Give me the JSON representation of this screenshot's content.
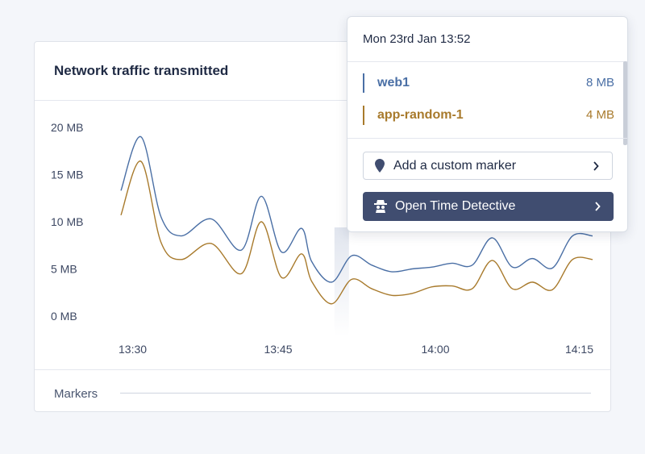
{
  "card": {
    "title": "Network traffic transmitted",
    "markers_label": "Markers"
  },
  "chart_data": {
    "type": "line",
    "title": "Network traffic transmitted",
    "x_ticks": [
      "13:30",
      "13:45",
      "14:00",
      "14:15"
    ],
    "y_ticks": [
      "20 MB",
      "15 MB",
      "10 MB",
      "5 MB",
      "0 MB"
    ],
    "ylim": [
      0,
      20
    ],
    "xlim": [
      0,
      47
    ],
    "x_unit": "minutes after 13:30",
    "hover_x": 22,
    "series": [
      {
        "name": "web1",
        "color": "#4a6fa5",
        "x": [
          0,
          2,
          4,
          6,
          9,
          12,
          14,
          16,
          18,
          19,
          21,
          23,
          25,
          27,
          29,
          31,
          33,
          35,
          37,
          39,
          41,
          43,
          45,
          47
        ],
        "values": [
          13.3,
          19.0,
          10.5,
          8.5,
          10.3,
          7.0,
          12.7,
          6.8,
          9.3,
          5.8,
          3.6,
          6.4,
          5.4,
          4.7,
          5.0,
          5.2,
          5.6,
          5.4,
          8.3,
          5.2,
          6.1,
          5.1,
          8.5,
          8.5
        ]
      },
      {
        "name": "app-random-1",
        "color": "#a87a2c",
        "x": [
          0,
          2,
          4,
          6,
          9,
          12,
          14,
          16,
          18,
          19,
          21,
          23,
          25,
          27,
          29,
          31,
          33,
          35,
          37,
          39,
          41,
          43,
          45,
          47
        ],
        "values": [
          10.7,
          16.4,
          7.8,
          6.0,
          7.7,
          4.5,
          10.0,
          4.1,
          6.6,
          3.7,
          1.3,
          3.9,
          2.9,
          2.2,
          2.4,
          3.1,
          3.2,
          2.9,
          5.9,
          2.9,
          3.6,
          2.8,
          6.0,
          6.0
        ]
      }
    ]
  },
  "tooltip": {
    "time": "Mon 23rd Jan 13:52",
    "rows": [
      {
        "name": "web1",
        "value": "8 MB",
        "color": "#4a6fa5"
      },
      {
        "name": "app-random-1",
        "value": "4 MB",
        "color": "#a87a2c"
      }
    ],
    "add_marker_label": "Add a custom marker",
    "open_td_label": "Open Time Detective"
  },
  "icons": {
    "marker": "map-pin-icon",
    "detective": "detective-icon",
    "chevron": "chevron-right-icon"
  }
}
